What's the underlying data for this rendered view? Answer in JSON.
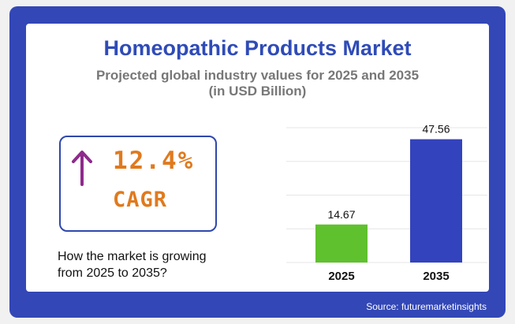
{
  "header": {
    "title": "Homeopathic Products Market",
    "subtitle_line1": "Projected global industry values for 2025 and 2035",
    "subtitle_line2": "(in USD Billion)"
  },
  "cagr": {
    "value": "12.4%",
    "label": "CAGR",
    "icon": "up-arrow-icon"
  },
  "question": {
    "line1": "How the market is growing",
    "line2": "from 2025 to 2035?"
  },
  "source": "Source: futuremarketinsights",
  "colors": {
    "frame": "#3347b6",
    "title": "#2f4bb8",
    "accent_orange": "#e07a1e",
    "arrow_purple": "#8e2a8c",
    "bar_2025": "#5fc12e",
    "bar_2035": "#3343bd"
  },
  "chart_data": {
    "type": "bar",
    "categories": [
      "2025",
      "2035"
    ],
    "values": [
      14.67,
      47.56
    ],
    "data_labels": [
      "14.67",
      "47.56"
    ],
    "bar_colors": [
      "#5fc12e",
      "#3343bd"
    ],
    "ylim": [
      0,
      52
    ],
    "grid": true,
    "title": "",
    "xlabel": "",
    "ylabel": ""
  }
}
